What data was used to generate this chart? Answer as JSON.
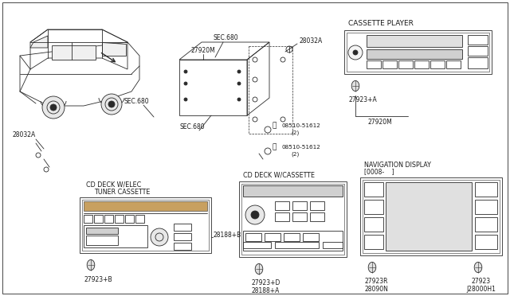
{
  "bg_color": "#ffffff",
  "line_color": "#2a2a2a",
  "fig_width": 6.4,
  "fig_height": 3.72,
  "dpi": 100,
  "labels": {
    "cassette_player": "CASSETTE PLAYER",
    "cd_deck_cassette": "CD DECK W/CASSETTE",
    "cd_deck_elec": "CD DECK W/ELEC",
    "tuner_cassette": "TUNER CASSETTE",
    "navigation_display": "NAVIGATION DISPLAY",
    "nav_bracket": "[0008-    ]",
    "sec680_1": "SEC.680",
    "sec680_2": "SEC.680",
    "sec680_3": "SEC.680",
    "part_27920M_1": "27920M",
    "part_27920M_2": "27920M",
    "part_28032A_1": "28032A",
    "part_28032A_2": "28032A",
    "part_27923A": "27923+A",
    "part_27923B": "27923+B",
    "part_27923D": "27923+D",
    "part_27923R": "27923R",
    "part_27923": "27923",
    "part_28188B": "28188+B",
    "part_28188A": "28188+A",
    "part_28090N": "28090N",
    "part_J28000H1": "J28000H1",
    "part_screw1": "08510-51612",
    "part_screw1_qty": "(2)",
    "part_screw2": "08510-51612",
    "part_screw2_qty": "(2)"
  }
}
